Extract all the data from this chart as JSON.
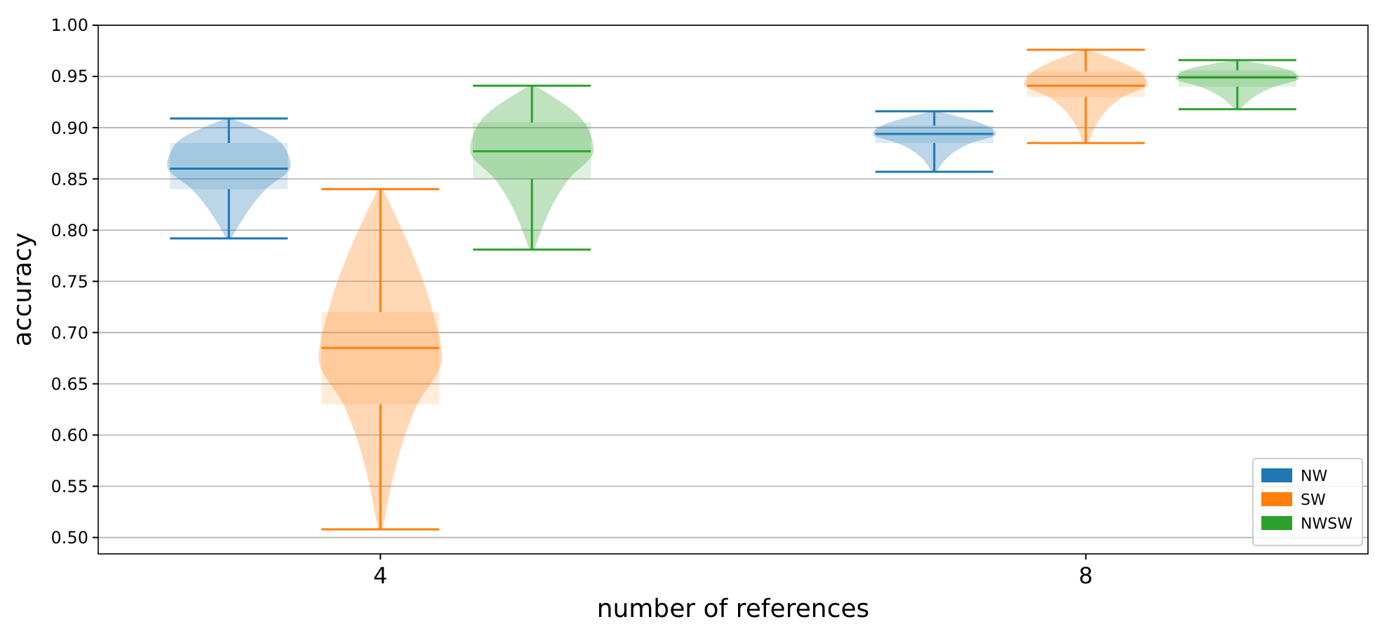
{
  "chart_data": {
    "type": "box",
    "xlabel": "number of references",
    "ylabel": "accuracy",
    "categories": [
      "4",
      "8"
    ],
    "ylim": [
      0.484,
      1.0
    ],
    "yticks": [
      {
        "value": 0.5,
        "label": "0.50"
      },
      {
        "value": 0.55,
        "label": "0.55"
      },
      {
        "value": 0.6,
        "label": "0.60"
      },
      {
        "value": 0.65,
        "label": "0.65"
      },
      {
        "value": 0.7,
        "label": "0.70"
      },
      {
        "value": 0.75,
        "label": "0.75"
      },
      {
        "value": 0.8,
        "label": "0.80"
      },
      {
        "value": 0.85,
        "label": "0.85"
      },
      {
        "value": 0.9,
        "label": "0.90"
      },
      {
        "value": 0.95,
        "label": "0.95"
      },
      {
        "value": 1.0,
        "label": "1.00"
      }
    ],
    "grid": "y",
    "legend": "bottom right",
    "series": [
      {
        "name": "NW",
        "color": "#1f77b4",
        "boxes": [
          {
            "low": 0.792,
            "q1": 0.84,
            "median": 0.86,
            "q3": 0.885,
            "high": 0.909
          },
          {
            "low": 0.857,
            "q1": 0.885,
            "median": 0.894,
            "q3": 0.902,
            "high": 0.916
          }
        ]
      },
      {
        "name": "SW",
        "color": "#ff7f0e",
        "boxes": [
          {
            "low": 0.508,
            "q1": 0.63,
            "median": 0.685,
            "q3": 0.72,
            "high": 0.84
          },
          {
            "low": 0.885,
            "q1": 0.93,
            "median": 0.941,
            "q3": 0.955,
            "high": 0.976
          }
        ]
      },
      {
        "name": "NWSW",
        "color": "#2ca02c",
        "boxes": [
          {
            "low": 0.781,
            "q1": 0.85,
            "median": 0.877,
            "q3": 0.905,
            "high": 0.941
          },
          {
            "low": 0.918,
            "q1": 0.94,
            "median": 0.949,
            "q3": 0.956,
            "high": 0.966
          }
        ]
      }
    ]
  }
}
